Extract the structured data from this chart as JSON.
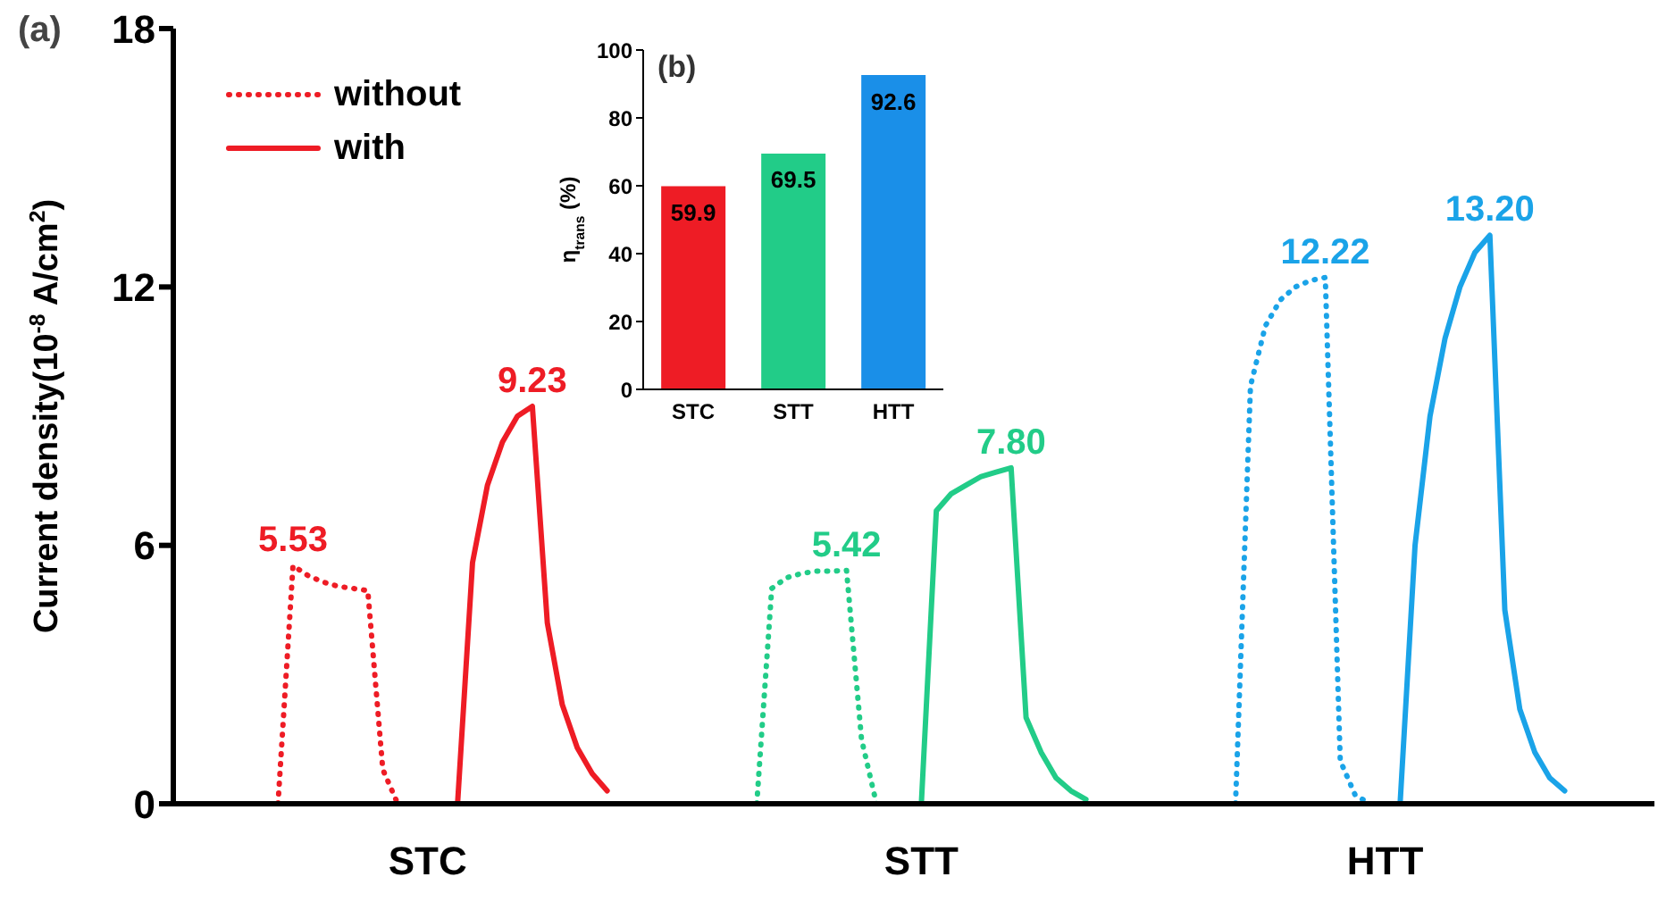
{
  "chart_data": [
    {
      "type": "line",
      "title": "(a)",
      "ylabel": "Current density(10$^{-8}$ A/cm$^{2}$)",
      "ylim": [
        0,
        18
      ],
      "yticks": [
        0,
        6,
        12,
        18
      ],
      "legend": "top left",
      "categories": [
        null,
        null,
        null,
        null,
        null,
        null,
        null,
        null,
        null,
        null,
        null,
        null,
        null,
        null,
        null,
        null,
        null,
        "STC",
        null,
        null,
        null,
        null,
        null,
        null,
        null,
        null,
        null,
        null,
        null,
        null,
        null,
        null,
        null,
        null,
        null,
        null,
        null,
        null,
        null,
        null,
        null,
        null,
        null,
        null,
        null,
        null,
        null,
        null,
        null,
        null,
        "STT",
        null,
        null,
        null,
        null,
        null,
        null,
        null,
        null,
        null,
        null,
        null,
        null,
        null,
        null,
        null,
        null,
        null,
        null,
        null,
        null,
        null,
        null,
        null,
        null,
        null,
        null,
        null,
        null,
        null,
        null,
        "HTT",
        null,
        null,
        null,
        null,
        null,
        null,
        null,
        null,
        null,
        null,
        null,
        null,
        null,
        null,
        null,
        null,
        null,
        null
      ],
      "series": [
        {
          "name": "without",
          "color": "#ee1c25",
          "line_style": "dotted",
          "values": [
            null,
            null,
            null,
            null,
            null,
            null,
            null,
            0,
            5.53,
            5.3,
            5.15,
            5.05,
            5.0,
            4.95,
            0.8,
            0,
            null,
            null,
            null,
            null,
            null,
            null,
            null,
            null,
            null,
            null,
            null,
            null,
            null,
            null,
            null,
            null,
            null,
            null,
            null,
            null,
            null,
            null,
            null,
            null,
            null,
            null,
            null,
            null,
            null,
            null,
            null,
            null,
            null,
            null,
            null,
            null,
            null,
            null,
            null,
            null,
            null,
            null,
            null,
            null,
            null,
            null,
            null,
            null,
            null,
            null,
            null,
            null,
            null,
            null,
            null,
            null,
            null,
            null,
            null,
            null,
            null,
            null,
            null,
            null,
            null,
            null,
            null,
            null,
            null,
            null,
            null,
            null,
            null,
            null,
            null,
            null,
            null,
            null,
            null,
            null,
            null,
            null,
            null,
            null
          ],
          "value_labels": [
            null,
            null,
            null,
            null,
            null,
            null,
            null,
            null,
            "5.53",
            null,
            null,
            null,
            null,
            null,
            null,
            null,
            null,
            null,
            null,
            null,
            null,
            null,
            null,
            null,
            null,
            null,
            null,
            null,
            null,
            null,
            null,
            null,
            null,
            null,
            null,
            null,
            null,
            null,
            null,
            null,
            null,
            null,
            null,
            null,
            null,
            null,
            null,
            null,
            null,
            null,
            null,
            null,
            null,
            null,
            null,
            null,
            null,
            null,
            null,
            null,
            null,
            null,
            null,
            null,
            null,
            null,
            null,
            null,
            null,
            null,
            null,
            null,
            null,
            null,
            null,
            null,
            null,
            null,
            null,
            null,
            null,
            null,
            null,
            null,
            null,
            null,
            null,
            null,
            null,
            null,
            null,
            null,
            null,
            null,
            null,
            null,
            null,
            null,
            null,
            null
          ]
        },
        {
          "name": "with",
          "color": "#ee1c25",
          "line_style": "solid",
          "values": [
            null,
            null,
            null,
            null,
            null,
            null,
            null,
            null,
            null,
            null,
            null,
            null,
            null,
            null,
            null,
            null,
            null,
            null,
            null,
            0,
            5.6,
            7.4,
            8.4,
            9.0,
            9.23,
            4.2,
            2.3,
            1.3,
            0.7,
            0.3,
            null,
            null,
            null,
            null,
            null,
            null,
            null,
            null,
            null,
            null,
            null,
            null,
            null,
            null,
            null,
            null,
            null,
            null,
            null,
            null,
            null,
            null,
            null,
            null,
            null,
            null,
            null,
            null,
            null,
            null,
            null,
            null,
            null,
            null,
            null,
            null,
            null,
            null,
            null,
            null,
            null,
            null,
            null,
            null,
            null,
            null,
            null,
            null,
            null,
            null,
            null,
            null,
            null,
            null,
            null,
            null,
            null,
            null,
            null,
            null,
            null,
            null,
            null,
            null,
            null,
            null,
            null,
            null,
            null,
            null
          ],
          "value_labels": [
            null,
            null,
            null,
            null,
            null,
            null,
            null,
            null,
            null,
            null,
            null,
            null,
            null,
            null,
            null,
            null,
            null,
            null,
            null,
            null,
            null,
            null,
            null,
            null,
            "9.23",
            null,
            null,
            null,
            null,
            null,
            null,
            null,
            null,
            null,
            null,
            null,
            null,
            null,
            null,
            null,
            null,
            null,
            null,
            null,
            null,
            null,
            null,
            null,
            null,
            null,
            null,
            null,
            null,
            null,
            null,
            null,
            null,
            null,
            null,
            null,
            null,
            null,
            null,
            null,
            null,
            null,
            null,
            null,
            null,
            null,
            null,
            null,
            null,
            null,
            null,
            null,
            null,
            null,
            null,
            null,
            null,
            null,
            null,
            null,
            null,
            null,
            null,
            null,
            null,
            null,
            null,
            null,
            null,
            null,
            null,
            null,
            null,
            null,
            null,
            null
          ]
        },
        {
          "color": "#22cc88",
          "line_style": "dotted",
          "values": [
            null,
            null,
            null,
            null,
            null,
            null,
            null,
            null,
            null,
            null,
            null,
            null,
            null,
            null,
            null,
            null,
            null,
            null,
            null,
            null,
            null,
            null,
            null,
            null,
            null,
            null,
            null,
            null,
            null,
            null,
            null,
            null,
            null,
            null,
            null,
            null,
            null,
            null,
            null,
            0,
            5.0,
            5.25,
            5.35,
            5.4,
            5.4,
            5.42,
            1.5,
            0,
            null,
            null,
            null,
            null,
            null,
            null,
            null,
            null,
            null,
            null,
            null,
            null,
            null,
            null,
            null,
            null,
            null,
            null,
            null,
            null,
            null,
            null,
            null,
            null,
            null,
            null,
            null,
            null,
            null,
            null,
            null,
            null,
            null,
            null,
            null,
            null,
            null,
            null,
            null,
            null,
            null,
            null,
            null,
            null,
            null,
            null,
            null,
            null,
            null,
            null,
            null,
            null
          ],
          "value_labels": [
            null,
            null,
            null,
            null,
            null,
            null,
            null,
            null,
            null,
            null,
            null,
            null,
            null,
            null,
            null,
            null,
            null,
            null,
            null,
            null,
            null,
            null,
            null,
            null,
            null,
            null,
            null,
            null,
            null,
            null,
            null,
            null,
            null,
            null,
            null,
            null,
            null,
            null,
            null,
            null,
            null,
            null,
            null,
            null,
            null,
            "5.42",
            null,
            null,
            null,
            null,
            null,
            null,
            null,
            null,
            null,
            null,
            null,
            null,
            null,
            null,
            null,
            null,
            null,
            null,
            null,
            null,
            null,
            null,
            null,
            null,
            null,
            null,
            null,
            null,
            null,
            null,
            null,
            null,
            null,
            null,
            null,
            null,
            null,
            null,
            null,
            null,
            null,
            null,
            null,
            null,
            null,
            null,
            null,
            null,
            null,
            null,
            null,
            null,
            null,
            null
          ]
        },
        {
          "color": "#22cc88",
          "line_style": "solid",
          "values": [
            null,
            null,
            null,
            null,
            null,
            null,
            null,
            null,
            null,
            null,
            null,
            null,
            null,
            null,
            null,
            null,
            null,
            null,
            null,
            null,
            null,
            null,
            null,
            null,
            null,
            null,
            null,
            null,
            null,
            null,
            null,
            null,
            null,
            null,
            null,
            null,
            null,
            null,
            null,
            null,
            null,
            null,
            null,
            null,
            null,
            null,
            null,
            null,
            null,
            null,
            0,
            6.8,
            7.2,
            7.4,
            7.6,
            7.7,
            7.8,
            2.0,
            1.2,
            0.6,
            0.3,
            0.1,
            null,
            null,
            null,
            null,
            null,
            null,
            null,
            null,
            null,
            null,
            null,
            null,
            null,
            null,
            null,
            null,
            null,
            null,
            null,
            null,
            null,
            null,
            null,
            null,
            null,
            null,
            null,
            null,
            null,
            null,
            null,
            null,
            null,
            null,
            null,
            null,
            null,
            null
          ],
          "value_labels": [
            null,
            null,
            null,
            null,
            null,
            null,
            null,
            null,
            null,
            null,
            null,
            null,
            null,
            null,
            null,
            null,
            null,
            null,
            null,
            null,
            null,
            null,
            null,
            null,
            null,
            null,
            null,
            null,
            null,
            null,
            null,
            null,
            null,
            null,
            null,
            null,
            null,
            null,
            null,
            null,
            null,
            null,
            null,
            null,
            null,
            null,
            null,
            null,
            null,
            null,
            null,
            null,
            null,
            null,
            null,
            null,
            "7.80",
            null,
            null,
            null,
            null,
            null,
            null,
            null,
            null,
            null,
            null,
            null,
            null,
            null,
            null,
            null,
            null,
            null,
            null,
            null,
            null,
            null,
            null,
            null,
            null,
            null,
            null,
            null,
            null,
            null,
            null,
            null,
            null,
            null,
            null,
            null,
            null,
            null,
            null,
            null,
            null,
            null,
            null,
            null
          ]
        },
        {
          "color": "#1aa3e8",
          "line_style": "dotted",
          "values": [
            null,
            null,
            null,
            null,
            null,
            null,
            null,
            null,
            null,
            null,
            null,
            null,
            null,
            null,
            null,
            null,
            null,
            null,
            null,
            null,
            null,
            null,
            null,
            null,
            null,
            null,
            null,
            null,
            null,
            null,
            null,
            null,
            null,
            null,
            null,
            null,
            null,
            null,
            null,
            null,
            null,
            null,
            null,
            null,
            null,
            null,
            null,
            null,
            null,
            null,
            null,
            null,
            null,
            null,
            null,
            null,
            null,
            null,
            null,
            null,
            null,
            null,
            null,
            null,
            null,
            null,
            null,
            null,
            null,
            null,
            null,
            0,
            9.7,
            11.1,
            11.7,
            12.0,
            12.15,
            12.22,
            1.0,
            0.2,
            0,
            0,
            null,
            null,
            null,
            null,
            null,
            null,
            null,
            null,
            null,
            null,
            null,
            null,
            null,
            null,
            null,
            null,
            null,
            null
          ],
          "value_labels": [
            null,
            null,
            null,
            null,
            null,
            null,
            null,
            null,
            null,
            null,
            null,
            null,
            null,
            null,
            null,
            null,
            null,
            null,
            null,
            null,
            null,
            null,
            null,
            null,
            null,
            null,
            null,
            null,
            null,
            null,
            null,
            null,
            null,
            null,
            null,
            null,
            null,
            null,
            null,
            null,
            null,
            null,
            null,
            null,
            null,
            null,
            null,
            null,
            null,
            null,
            null,
            null,
            null,
            null,
            null,
            null,
            null,
            null,
            null,
            null,
            null,
            null,
            null,
            null,
            null,
            null,
            null,
            null,
            null,
            null,
            null,
            null,
            null,
            null,
            null,
            null,
            null,
            "12.22",
            null,
            null,
            null,
            null,
            null,
            null,
            null,
            null,
            null,
            null,
            null,
            null,
            null,
            null,
            null,
            null,
            null,
            null,
            null,
            null,
            null,
            null
          ]
        },
        {
          "color": "#1aa3e8",
          "line_style": "solid",
          "values": [
            null,
            null,
            null,
            null,
            null,
            null,
            null,
            null,
            null,
            null,
            null,
            null,
            null,
            null,
            null,
            null,
            null,
            null,
            null,
            null,
            null,
            null,
            null,
            null,
            null,
            null,
            null,
            null,
            null,
            null,
            null,
            null,
            null,
            null,
            null,
            null,
            null,
            null,
            null,
            null,
            null,
            null,
            null,
            null,
            null,
            null,
            null,
            null,
            null,
            null,
            null,
            null,
            null,
            null,
            null,
            null,
            null,
            null,
            null,
            null,
            null,
            null,
            null,
            null,
            null,
            null,
            null,
            null,
            null,
            null,
            null,
            null,
            null,
            null,
            null,
            null,
            null,
            null,
            null,
            null,
            null,
            null,
            0,
            6.0,
            9.0,
            10.8,
            12.0,
            12.8,
            13.2,
            4.5,
            2.2,
            1.2,
            0.6,
            0.3,
            null,
            null,
            null,
            null,
            null,
            null
          ],
          "value_labels": [
            null,
            null,
            null,
            null,
            null,
            null,
            null,
            null,
            null,
            null,
            null,
            null,
            null,
            null,
            null,
            null,
            null,
            null,
            null,
            null,
            null,
            null,
            null,
            null,
            null,
            null,
            null,
            null,
            null,
            null,
            null,
            null,
            null,
            null,
            null,
            null,
            null,
            null,
            null,
            null,
            null,
            null,
            null,
            null,
            null,
            null,
            null,
            null,
            null,
            null,
            null,
            null,
            null,
            null,
            null,
            null,
            null,
            null,
            null,
            null,
            null,
            null,
            null,
            null,
            null,
            null,
            null,
            null,
            null,
            null,
            null,
            null,
            null,
            null,
            null,
            null,
            null,
            null,
            null,
            null,
            null,
            null,
            null,
            null,
            null,
            null,
            null,
            null,
            "13.20",
            null,
            null,
            null,
            null,
            null,
            null,
            null,
            null,
            null,
            null,
            null
          ]
        }
      ]
    },
    {
      "type": "bar",
      "title": "(b)",
      "ylabel": "η$_{trans}$ (%)",
      "categories": [
        "STC",
        "STT",
        "HTT"
      ],
      "values": [
        59.9,
        69.5,
        92.6
      ],
      "colors": [
        "#ee1c25",
        "#22cc88",
        "#1a8fe8"
      ],
      "ylim": [
        0,
        100
      ],
      "yticks": [
        0,
        20,
        40,
        60,
        80,
        100
      ],
      "data_labels": true
    }
  ]
}
